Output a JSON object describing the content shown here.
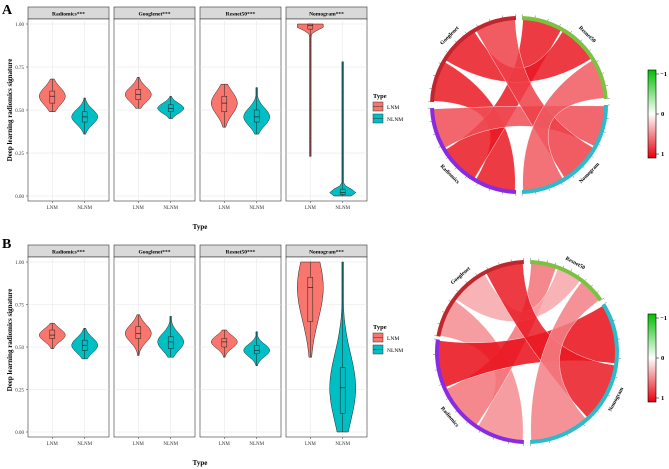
{
  "figure": {
    "panels": [
      {
        "letter": "A",
        "ylabel": "Deep learning radiomics signature",
        "xlabel": "Type",
        "legend": {
          "title": "Type",
          "items": [
            "LNM",
            "NLNM"
          ]
        },
        "colorbar": {
          "top": "−1",
          "mid": "0",
          "bottom": "1"
        },
        "chord_labels": [
          "Googlenet",
          "Resnet50",
          "Nomogram",
          "Radiomics"
        ]
      },
      {
        "letter": "B",
        "ylabel": "Deep learning radiomics signature",
        "xlabel": "Type",
        "legend": {
          "title": "Type",
          "items": [
            "LNM",
            "NLNM"
          ]
        },
        "colorbar": {
          "top": "−1",
          "mid": "0",
          "bottom": "1"
        },
        "chord_labels": [
          "Googlenet",
          "Resnet50",
          "Nomogram",
          "Radiomics"
        ]
      }
    ]
  },
  "chart_data": [
    {
      "type": "violin",
      "panel": "A",
      "ylabel": "Deep learning radiomics signature",
      "xlabel": "Type",
      "categories": [
        "LNM",
        "NLNM"
      ],
      "ylim": [
        0,
        1
      ],
      "yticks": [
        "0.00",
        "0.25",
        "0.50",
        "0.75",
        "1.00"
      ],
      "colors": {
        "LNM": "#F8766D",
        "NLNM": "#00BFC4"
      },
      "facets": [
        {
          "title": "Radiomics***",
          "LNM": {
            "min": 0.49,
            "q1": 0.54,
            "median": 0.58,
            "q3": 0.61,
            "max": 0.68
          },
          "NLNM": {
            "min": 0.36,
            "q1": 0.43,
            "median": 0.46,
            "q3": 0.49,
            "max": 0.57
          }
        },
        {
          "title": "Googlenet***",
          "LNM": {
            "min": 0.51,
            "q1": 0.56,
            "median": 0.59,
            "q3": 0.62,
            "max": 0.69
          },
          "NLNM": {
            "min": 0.45,
            "q1": 0.49,
            "median": 0.51,
            "q3": 0.53,
            "max": 0.58
          }
        },
        {
          "title": "Resnet50***",
          "LNM": {
            "min": 0.4,
            "q1": 0.49,
            "median": 0.54,
            "q3": 0.58,
            "max": 0.65
          },
          "NLNM": {
            "min": 0.36,
            "q1": 0.43,
            "median": 0.46,
            "q3": 0.5,
            "max": 0.63
          }
        },
        {
          "title": "Nomogram***",
          "LNM": {
            "min": 0.23,
            "q1": 0.97,
            "median": 0.99,
            "q3": 1.0,
            "max": 1.0
          },
          "NLNM": {
            "min": 0.0,
            "q1": 0.01,
            "median": 0.02,
            "q3": 0.04,
            "max": 0.78
          }
        }
      ]
    },
    {
      "type": "violin",
      "panel": "B",
      "ylabel": "Deep learning radiomics signature",
      "xlabel": "Type",
      "categories": [
        "LNM",
        "NLNM"
      ],
      "ylim": [
        0,
        1
      ],
      "yticks": [
        "0.00",
        "0.25",
        "0.50",
        "0.75",
        "1.00"
      ],
      "colors": {
        "LNM": "#F8766D",
        "NLNM": "#00BFC4"
      },
      "facets": [
        {
          "title": "Radiomics***",
          "LNM": {
            "min": 0.49,
            "q1": 0.55,
            "median": 0.57,
            "q3": 0.6,
            "max": 0.64
          },
          "NLNM": {
            "min": 0.43,
            "q1": 0.48,
            "median": 0.51,
            "q3": 0.54,
            "max": 0.61
          }
        },
        {
          "title": "Googlenet***",
          "LNM": {
            "min": 0.45,
            "q1": 0.55,
            "median": 0.58,
            "q3": 0.62,
            "max": 0.69
          },
          "NLNM": {
            "min": 0.44,
            "q1": 0.49,
            "median": 0.53,
            "q3": 0.56,
            "max": 0.68
          }
        },
        {
          "title": "Resnet50***",
          "LNM": {
            "min": 0.44,
            "q1": 0.5,
            "median": 0.53,
            "q3": 0.55,
            "max": 0.6
          },
          "NLNM": {
            "min": 0.39,
            "q1": 0.46,
            "median": 0.48,
            "q3": 0.51,
            "max": 0.59
          }
        },
        {
          "title": "Nomogram***",
          "LNM": {
            "min": 0.44,
            "q1": 0.65,
            "median": 0.85,
            "q3": 0.91,
            "max": 1.0
          },
          "NLNM": {
            "min": 0.0,
            "q1": 0.11,
            "median": 0.26,
            "q3": 0.38,
            "max": 1.0
          }
        }
      ]
    },
    {
      "type": "chord",
      "panel": "A",
      "sectors": [
        "Googlenet",
        "Resnet50",
        "Nomogram",
        "Radiomics"
      ],
      "sector_colors": {
        "Googlenet": "#C0272D",
        "Resnet50": "#7CC242",
        "Nomogram": "#2BBBCB",
        "Radiomics": "#8A2BE2"
      },
      "links": [
        {
          "from": "Radiomics",
          "to": "Googlenet",
          "value": 0.9
        },
        {
          "from": "Radiomics",
          "to": "Resnet50",
          "value": 0.9
        },
        {
          "from": "Radiomics",
          "to": "Nomogram",
          "value": 0.7
        },
        {
          "from": "Googlenet",
          "to": "Resnet50",
          "value": 0.9
        },
        {
          "from": "Googlenet",
          "to": "Nomogram",
          "value": 0.75
        },
        {
          "from": "Resnet50",
          "to": "Nomogram",
          "value": 0.65
        }
      ],
      "colorbar": {
        "range": [
          -1,
          1
        ],
        "low_color": "#E8000B",
        "high_color": "#00C000"
      }
    },
    {
      "type": "chord",
      "panel": "B",
      "sectors": [
        "Googlenet",
        "Resnet50",
        "Nomogram",
        "Radiomics"
      ],
      "sector_colors": {
        "Googlenet": "#C0272D",
        "Resnet50": "#7CC242",
        "Nomogram": "#2BBBCB",
        "Radiomics": "#8A2BE2"
      },
      "links": [
        {
          "from": "Radiomics",
          "to": "Googlenet",
          "value": 0.45
        },
        {
          "from": "Radiomics",
          "to": "Resnet50",
          "value": 0.55
        },
        {
          "from": "Radiomics",
          "to": "Nomogram",
          "value": 0.95
        },
        {
          "from": "Googlenet",
          "to": "Resnet50",
          "value": 0.35
        },
        {
          "from": "Googlenet",
          "to": "Nomogram",
          "value": 0.9
        },
        {
          "from": "Resnet50",
          "to": "Nomogram",
          "value": 0.5
        }
      ],
      "colorbar": {
        "range": [
          -1,
          1
        ],
        "low_color": "#E8000B",
        "high_color": "#00C000"
      }
    }
  ]
}
